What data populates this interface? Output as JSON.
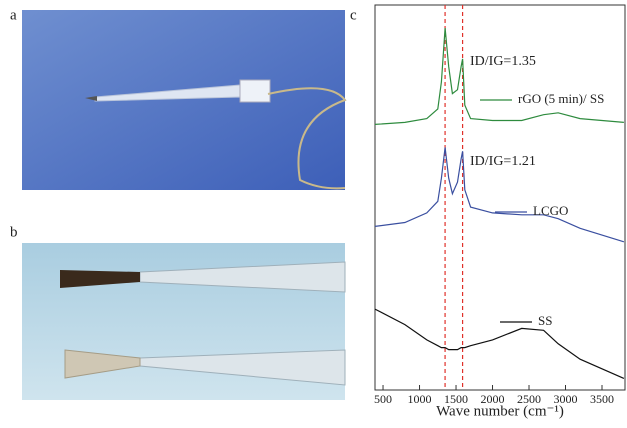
{
  "panel_labels": [
    "a",
    "b",
    "c"
  ],
  "chart_data": {
    "type": "line",
    "x_label": "Wave number (cm⁻¹)",
    "x": [
      390,
      800,
      1100,
      1250,
      1300,
      1350,
      1400,
      1450,
      1520,
      1570,
      1590,
      1620,
      1700,
      2000,
      2400,
      2700,
      2900,
      3200,
      3800
    ],
    "series": [
      {
        "name": "rGO (5 min)/ SS",
        "color": "#2e8b3e",
        "values": [
          69,
          69.5,
          70.5,
          73,
          80,
          94,
          84,
          77,
          78,
          84,
          86,
          74,
          70.5,
          70,
          70,
          71.5,
          72,
          70.5,
          69.5
        ]
      },
      {
        "name": "LCGO",
        "color": "#3a4fa0",
        "values": [
          42.5,
          43.5,
          46,
          49,
          55,
          63,
          55,
          51,
          54,
          60,
          62,
          52,
          47.5,
          46,
          45.5,
          45.5,
          44.5,
          42,
          38.5
        ]
      },
      {
        "name": "SS",
        "color": "#111111",
        "values": [
          21,
          17,
          13,
          11.5,
          11,
          11,
          10.5,
          10.5,
          10.5,
          11,
          11,
          11,
          11.5,
          13,
          16,
          15.5,
          12,
          8,
          3
        ]
      }
    ],
    "annotations": [
      "ID/IG=1.35",
      "ID/IG=1.21"
    ],
    "reference_lines": [
      1350,
      1590
    ],
    "reference_color": "#e0302a",
    "xlim": [
      390,
      3815
    ],
    "ylim": [
      0,
      100
    ],
    "xticks": [
      500,
      1000,
      1500,
      2000,
      2500,
      3000,
      3500
    ]
  }
}
